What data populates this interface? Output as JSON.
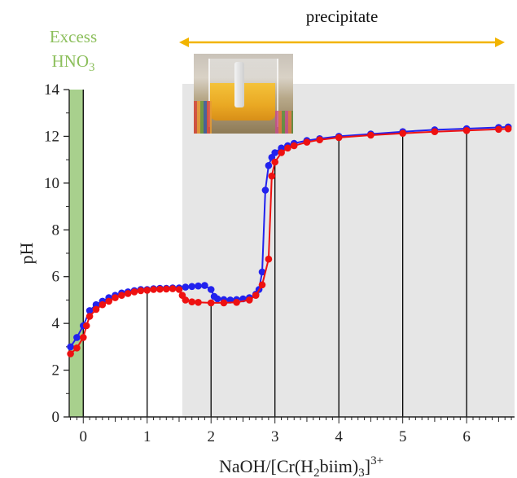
{
  "chart_data": {
    "type": "scatter",
    "title": "",
    "xlabel": "NaOH/[Cr(H2biim)3]3+",
    "ylabel": "pH",
    "xlim": [
      -0.22,
      6.75
    ],
    "ylim": [
      0,
      14
    ],
    "x_ticks": [
      "0",
      "1",
      "2",
      "3",
      "4",
      "5",
      "6"
    ],
    "y_ticks": [
      "0",
      "2",
      "4",
      "6",
      "8",
      "10",
      "12",
      "14"
    ],
    "grid": false,
    "annotations": {
      "excess_region": {
        "text": "Excess",
        "formula": "HNO",
        "subscript": "3",
        "x_range": [
          -0.22,
          0.0
        ],
        "color": "#a8d08d"
      },
      "precipitate_region": {
        "text": "precipitate",
        "x_range": [
          1.55,
          6.75
        ],
        "color": "#e6e6e6",
        "arrow_color": "#f2b400"
      }
    },
    "vertical_lines_x": [
      0,
      1,
      2,
      3,
      4,
      5,
      6
    ],
    "series": [
      {
        "color": "#2222ee",
        "points": [
          [
            -0.2,
            3.0
          ],
          [
            -0.1,
            3.4
          ],
          [
            0.0,
            3.9
          ],
          [
            0.1,
            4.55
          ],
          [
            0.2,
            4.8
          ],
          [
            0.3,
            4.95
          ],
          [
            0.4,
            5.1
          ],
          [
            0.5,
            5.2
          ],
          [
            0.6,
            5.3
          ],
          [
            0.7,
            5.35
          ],
          [
            0.8,
            5.4
          ],
          [
            0.9,
            5.45
          ],
          [
            1.0,
            5.45
          ],
          [
            1.1,
            5.48
          ],
          [
            1.2,
            5.5
          ],
          [
            1.3,
            5.5
          ],
          [
            1.4,
            5.52
          ],
          [
            1.5,
            5.52
          ],
          [
            1.6,
            5.55
          ],
          [
            1.7,
            5.58
          ],
          [
            1.8,
            5.6
          ],
          [
            1.9,
            5.62
          ],
          [
            2.0,
            5.45
          ],
          [
            2.05,
            5.15
          ],
          [
            2.1,
            5.05
          ],
          [
            2.2,
            5.02
          ],
          [
            2.3,
            5.0
          ],
          [
            2.4,
            5.02
          ],
          [
            2.5,
            5.05
          ],
          [
            2.6,
            5.1
          ],
          [
            2.7,
            5.25
          ],
          [
            2.75,
            5.45
          ],
          [
            2.8,
            6.2
          ],
          [
            2.85,
            9.7
          ],
          [
            2.9,
            10.75
          ],
          [
            2.95,
            11.1
          ],
          [
            3.0,
            11.3
          ],
          [
            3.1,
            11.5
          ],
          [
            3.2,
            11.6
          ],
          [
            3.3,
            11.7
          ],
          [
            3.5,
            11.82
          ],
          [
            3.7,
            11.9
          ],
          [
            4.0,
            12.0
          ],
          [
            4.5,
            12.1
          ],
          [
            5.0,
            12.2
          ],
          [
            5.5,
            12.28
          ],
          [
            6.0,
            12.33
          ],
          [
            6.5,
            12.38
          ],
          [
            6.65,
            12.4
          ]
        ]
      },
      {
        "color": "#ee1111",
        "points": [
          [
            -0.2,
            2.7
          ],
          [
            -0.1,
            2.95
          ],
          [
            0.0,
            3.4
          ],
          [
            0.05,
            3.9
          ],
          [
            0.1,
            4.3
          ],
          [
            0.2,
            4.6
          ],
          [
            0.3,
            4.8
          ],
          [
            0.4,
            4.95
          ],
          [
            0.5,
            5.1
          ],
          [
            0.6,
            5.2
          ],
          [
            0.7,
            5.28
          ],
          [
            0.8,
            5.35
          ],
          [
            0.9,
            5.4
          ],
          [
            1.0,
            5.42
          ],
          [
            1.1,
            5.45
          ],
          [
            1.2,
            5.46
          ],
          [
            1.3,
            5.47
          ],
          [
            1.4,
            5.48
          ],
          [
            1.5,
            5.45
          ],
          [
            1.55,
            5.2
          ],
          [
            1.6,
            5.0
          ],
          [
            1.7,
            4.92
          ],
          [
            1.8,
            4.9
          ],
          [
            2.0,
            4.88
          ],
          [
            2.2,
            4.88
          ],
          [
            2.4,
            4.9
          ],
          [
            2.6,
            5.0
          ],
          [
            2.7,
            5.2
          ],
          [
            2.8,
            5.65
          ],
          [
            2.9,
            6.75
          ],
          [
            2.95,
            10.3
          ],
          [
            3.0,
            10.9
          ],
          [
            3.1,
            11.3
          ],
          [
            3.2,
            11.5
          ],
          [
            3.3,
            11.6
          ],
          [
            3.5,
            11.75
          ],
          [
            3.7,
            11.85
          ],
          [
            4.0,
            11.95
          ],
          [
            4.5,
            12.05
          ],
          [
            5.0,
            12.13
          ],
          [
            5.5,
            12.2
          ],
          [
            6.0,
            12.25
          ],
          [
            6.5,
            12.3
          ],
          [
            6.65,
            12.32
          ]
        ]
      }
    ]
  }
}
